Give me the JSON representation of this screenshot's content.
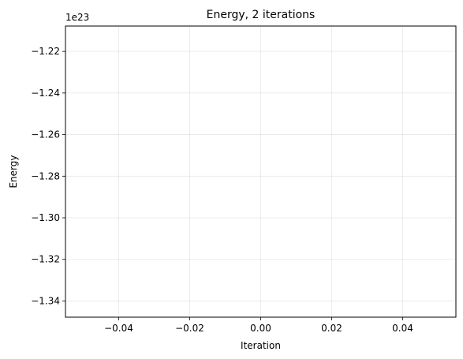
{
  "chart_data": {
    "type": "line",
    "title": "Energy, 2 iterations",
    "xlabel": "Iteration",
    "ylabel": "Energy",
    "y_offset_label": "1e23",
    "xlim": [
      -0.055,
      0.055
    ],
    "ylim": [
      -1.3478,
      -1.2078
    ],
    "x_ticks": [
      -0.04,
      -0.02,
      0.0,
      0.02,
      0.04
    ],
    "x_tick_labels": [
      "−0.04",
      "−0.02",
      "0.00",
      "0.02",
      "0.04"
    ],
    "y_ticks": [
      -1.22,
      -1.24,
      -1.26,
      -1.28,
      -1.3,
      -1.32,
      -1.34
    ],
    "y_tick_labels": [
      "−1.22",
      "−1.24",
      "−1.26",
      "−1.28",
      "−1.30",
      "−1.32",
      "−1.34"
    ],
    "grid": true,
    "series": [
      {
        "x": [],
        "y": []
      }
    ]
  }
}
